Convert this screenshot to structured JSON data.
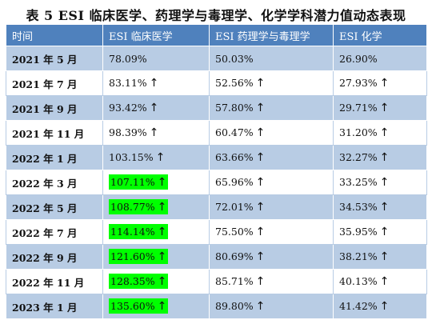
{
  "title": "表 5 ESI 临床医学、药理学与毒理学、化学学科潜力值动态表现",
  "table": {
    "headers": [
      "时间",
      "ESI 临床医学",
      "ESI 药理学与毒理学",
      "ESI 化学"
    ],
    "rows": [
      {
        "time": "2021 年 5 月",
        "clinical": "78.09%",
        "clinical_up": false,
        "clinical_hl": false,
        "pharm": "50.03%",
        "pharm_up": false,
        "chem": "26.90%",
        "chem_up": false
      },
      {
        "time": "2021 年 7 月",
        "clinical": "83.11%",
        "clinical_up": true,
        "clinical_hl": false,
        "pharm": "52.56%",
        "pharm_up": true,
        "chem": "27.93%",
        "chem_up": true
      },
      {
        "time": "2021 年 9 月",
        "clinical": "93.42%",
        "clinical_up": true,
        "clinical_hl": false,
        "pharm": "57.80%",
        "pharm_up": true,
        "chem": "29.71%",
        "chem_up": true
      },
      {
        "time": "2021 年 11 月",
        "clinical": "98.39%",
        "clinical_up": true,
        "clinical_hl": false,
        "pharm": "60.47%",
        "pharm_up": true,
        "chem": "31.20%",
        "chem_up": true
      },
      {
        "time": "2022 年 1 月",
        "clinical": "103.15%",
        "clinical_up": true,
        "clinical_hl": false,
        "pharm": "63.66%",
        "pharm_up": true,
        "chem": "32.27%",
        "chem_up": true
      },
      {
        "time": "2022 年 3 月",
        "clinical": "107.11%",
        "clinical_up": true,
        "clinical_hl": true,
        "pharm": "65.96%",
        "pharm_up": true,
        "chem": "33.25%",
        "chem_up": true
      },
      {
        "time": "2022 年 5 月",
        "clinical": "108.77%",
        "clinical_up": true,
        "clinical_hl": true,
        "pharm": "72.01%",
        "pharm_up": true,
        "chem": "34.53%",
        "chem_up": true
      },
      {
        "time": "2022 年 7 月",
        "clinical": "114.14%",
        "clinical_up": true,
        "clinical_hl": true,
        "pharm": "75.50%",
        "pharm_up": true,
        "chem": "35.95%",
        "chem_up": true
      },
      {
        "time": "2022 年 9 月",
        "clinical": "121.60%",
        "clinical_up": true,
        "clinical_hl": true,
        "pharm": "80.69%",
        "pharm_up": true,
        "chem": "38.21%",
        "chem_up": true
      },
      {
        "time": "2022 年 11 月",
        "clinical": "128.35%",
        "clinical_up": true,
        "clinical_hl": true,
        "pharm": "85.71%",
        "pharm_up": true,
        "chem": "40.13%",
        "chem_up": true
      },
      {
        "time": "2023 年 1 月",
        "clinical": "135.60%",
        "clinical_up": true,
        "clinical_hl": true,
        "pharm": "89.80%",
        "pharm_up": true,
        "chem": "41.42%",
        "chem_up": true
      }
    ],
    "up_arrow": "↑",
    "colors": {
      "header_bg": "#4f81bd",
      "band_bg": "#b8cce4",
      "highlight": "#00ff00"
    }
  }
}
